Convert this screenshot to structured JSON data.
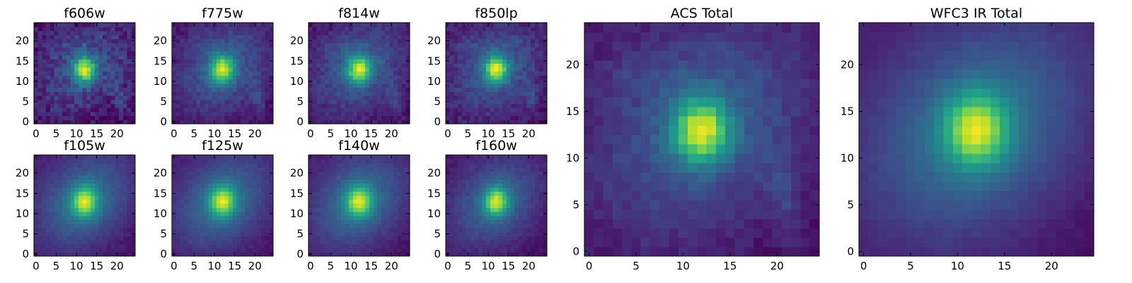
{
  "chart_data": [
    {
      "type": "heatmap",
      "title": "f606w",
      "xticks": [
        0,
        5,
        10,
        15,
        20
      ],
      "yticks": [
        0,
        5,
        10,
        15,
        20
      ],
      "xlim": [
        0,
        24
      ],
      "ylim": [
        0,
        24
      ],
      "grid": false,
      "colormap": "viridis",
      "source_center": [
        12,
        13
      ],
      "core_width": 1.9,
      "halo_width": 7.0,
      "core_amp": 0.66,
      "halo_amp": 0.24,
      "noise": 0.09,
      "spiral": true
    },
    {
      "type": "heatmap",
      "title": "f775w",
      "xticks": [
        0,
        5,
        10,
        15,
        20
      ],
      "yticks": [
        0,
        5,
        10,
        15,
        20
      ],
      "xlim": [
        0,
        24
      ],
      "ylim": [
        0,
        24
      ],
      "grid": false,
      "colormap": "viridis",
      "source_center": [
        12,
        13
      ],
      "core_width": 2.0,
      "halo_width": 7.5,
      "core_amp": 0.66,
      "halo_amp": 0.27,
      "noise": 0.05,
      "spiral": true
    },
    {
      "type": "heatmap",
      "title": "f814w",
      "xticks": [
        0,
        5,
        10,
        15,
        20
      ],
      "yticks": [
        0,
        5,
        10,
        15,
        20
      ],
      "xlim": [
        0,
        24
      ],
      "ylim": [
        0,
        24
      ],
      "grid": false,
      "colormap": "viridis",
      "source_center": [
        12,
        13
      ],
      "core_width": 2.0,
      "halo_width": 7.5,
      "core_amp": 0.66,
      "halo_amp": 0.27,
      "noise": 0.05,
      "spiral": true
    },
    {
      "type": "heatmap",
      "title": "f850lp",
      "xticks": [
        0,
        5,
        10,
        15,
        20
      ],
      "yticks": [
        0,
        5,
        10,
        15,
        20
      ],
      "xlim": [
        0,
        24
      ],
      "ylim": [
        0,
        24
      ],
      "grid": false,
      "colormap": "viridis",
      "source_center": [
        12,
        13
      ],
      "core_width": 2.0,
      "halo_width": 7.5,
      "core_amp": 0.66,
      "halo_amp": 0.27,
      "noise": 0.06,
      "spiral": true
    },
    {
      "type": "heatmap",
      "title": "f105w",
      "xticks": [
        0,
        5,
        10,
        15,
        20
      ],
      "yticks": [
        0,
        5,
        10,
        15,
        20
      ],
      "xlim": [
        0,
        24
      ],
      "ylim": [
        0,
        24
      ],
      "grid": false,
      "colormap": "viridis",
      "source_center": [
        12,
        13
      ],
      "core_width": 2.2,
      "halo_width": 8.0,
      "core_amp": 0.6,
      "halo_amp": 0.34,
      "noise": 0.025,
      "spiral": false
    },
    {
      "type": "heatmap",
      "title": "f125w",
      "xticks": [
        0,
        5,
        10,
        15,
        20
      ],
      "yticks": [
        0,
        5,
        10,
        15,
        20
      ],
      "xlim": [
        0,
        24
      ],
      "ylim": [
        0,
        24
      ],
      "grid": false,
      "colormap": "viridis",
      "source_center": [
        12,
        13
      ],
      "core_width": 2.2,
      "halo_width": 8.0,
      "core_amp": 0.6,
      "halo_amp": 0.34,
      "noise": 0.025,
      "spiral": false
    },
    {
      "type": "heatmap",
      "title": "f140w",
      "xticks": [
        0,
        5,
        10,
        15,
        20
      ],
      "yticks": [
        0,
        5,
        10,
        15,
        20
      ],
      "xlim": [
        0,
        24
      ],
      "ylim": [
        0,
        24
      ],
      "grid": false,
      "colormap": "viridis",
      "source_center": [
        12,
        13
      ],
      "core_width": 2.2,
      "halo_width": 8.0,
      "core_amp": 0.6,
      "halo_amp": 0.34,
      "noise": 0.025,
      "spiral": false
    },
    {
      "type": "heatmap",
      "title": "f160w",
      "xticks": [
        0,
        5,
        10,
        15,
        20
      ],
      "yticks": [
        0,
        5,
        10,
        15,
        20
      ],
      "xlim": [
        0,
        24
      ],
      "ylim": [
        0,
        24
      ],
      "grid": false,
      "colormap": "viridis",
      "source_center": [
        12,
        13
      ],
      "core_width": 2.1,
      "halo_width": 7.5,
      "core_amp": 0.62,
      "halo_amp": 0.3,
      "noise": 0.03,
      "spiral": false
    },
    {
      "type": "heatmap",
      "title": "ACS Total",
      "xticks": [
        0,
        5,
        10,
        15,
        20
      ],
      "yticks": [
        0,
        5,
        10,
        15,
        20
      ],
      "xlim": [
        0,
        24
      ],
      "ylim": [
        0,
        24
      ],
      "grid": false,
      "colormap": "viridis",
      "source_center": [
        12,
        13
      ],
      "core_width": 2.0,
      "halo_width": 7.5,
      "core_amp": 0.68,
      "halo_amp": 0.27,
      "noise": 0.04,
      "spiral": true
    },
    {
      "type": "heatmap",
      "title": "WFC3 IR Total",
      "xticks": [
        0,
        5,
        10,
        15,
        20
      ],
      "yticks": [
        0,
        5,
        10,
        15,
        20
      ],
      "xlim": [
        0,
        24
      ],
      "ylim": [
        0,
        24
      ],
      "grid": false,
      "colormap": "viridis",
      "source_center": [
        12,
        13
      ],
      "core_width": 2.3,
      "halo_width": 8.0,
      "core_amp": 0.6,
      "halo_amp": 0.35,
      "noise": 0.015,
      "spiral": false
    }
  ],
  "colormap_stops": [
    "#440154",
    "#482878",
    "#3e4a89",
    "#31688e",
    "#26828e",
    "#1f9e89",
    "#35b779",
    "#6ece58",
    "#b5de2b",
    "#fde725"
  ]
}
